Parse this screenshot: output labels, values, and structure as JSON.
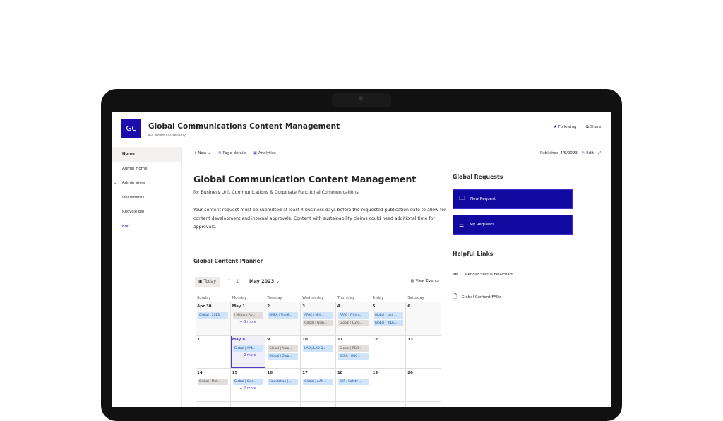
{
  "site": {
    "logo": "GC",
    "title": "Global Communications Content Management",
    "subtitle": "K-C Internal Use Only",
    "following": "Following",
    "share": "Share"
  },
  "nav": [
    "Home",
    "Admin Home",
    "Admin View",
    "Documents",
    "Recycle bin",
    "Edit"
  ],
  "commands": {
    "new": "New",
    "page_details": "Page details",
    "analytics": "Analytics",
    "published": "Published 4/5/2023",
    "edit": "Edit"
  },
  "main": {
    "title": "Global Communication Content Management",
    "subtitle": "for Business Unit Communications & Corporate Functional Communications",
    "body": "Your content request must be submitted at least 4 business days before the requested publication date to allow for content development and internal approvals.  Content with sustainability claims could need additional time for approvals."
  },
  "planner": {
    "title": "Global Content Planner",
    "today": "Today",
    "month": "May 2023",
    "view_events": "View Events",
    "days": [
      "Sunday",
      "Monday",
      "Tuesday",
      "Wednesday",
      "Thursday",
      "Friday",
      "Saturday"
    ],
    "weeks": [
      [
        {
          "d": "Apr 30",
          "ev": [
            [
              "Global | 2023...",
              "b"
            ]
          ]
        },
        {
          "d": "May 1",
          "ev": [
            [
              "| Military Ap...",
              "g"
            ]
          ],
          "more": "+ 3 more"
        },
        {
          "d": "2",
          "ev": [
            [
              "EMEA | The E...",
              "b"
            ]
          ]
        },
        {
          "d": "3",
          "ev": [
            [
              "APAC | Milit...",
              "b"
            ],
            [
              "Global | Glob...",
              "g"
            ]
          ]
        },
        {
          "d": "4",
          "ev": [
            [
              "APAC | Fifty y...",
              "b"
            ],
            [
              "Global | Q2 G...",
              "g"
            ]
          ]
        },
        {
          "d": "5",
          "ev": [
            [
              "Global | Lori ...",
              "b"
            ],
            [
              "Global | VIDE...",
              "b"
            ]
          ]
        },
        {
          "d": "6",
          "ev": []
        }
      ],
      [
        {
          "d": "7",
          "ev": []
        },
        {
          "d": "May 8",
          "ev": [
            [
              "Global | AAN...",
              "b"
            ]
          ],
          "more": "+ 2 more",
          "cur": true
        },
        {
          "d": "9",
          "ev": [
            [
              "Global | Auro...",
              "g"
            ],
            [
              "Global | Glob...",
              "b"
            ]
          ]
        },
        {
          "d": "10",
          "ev": [
            [
              "LAO | LAO Q...",
              "b"
            ]
          ]
        },
        {
          "d": "11",
          "ev": [
            [
              "Global | REM...",
              "g"
            ],
            [
              "KCNA | UsK ...",
              "b"
            ]
          ]
        },
        {
          "d": "12",
          "ev": []
        },
        {
          "d": "13",
          "ev": []
        }
      ],
      [
        {
          "d": "14",
          "ev": [
            [
              "Global | Mot...",
              "g"
            ]
          ]
        },
        {
          "d": "15",
          "ev": [
            [
              "Global | Cele...",
              "b"
            ]
          ],
          "more": "+ 2 more"
        },
        {
          "d": "16",
          "ev": [
            [
              "Foundation | ...",
              "b"
            ]
          ]
        },
        {
          "d": "17",
          "ev": [
            [
              "Global | AAN...",
              "b"
            ]
          ]
        },
        {
          "d": "18",
          "ev": [
            [
              "KCP | Safety ...",
              "b"
            ]
          ]
        },
        {
          "d": "19",
          "ev": []
        },
        {
          "d": "20",
          "ev": []
        }
      ]
    ]
  },
  "right": {
    "requests_title": "Global Requests",
    "new_request": "New Request",
    "my_requests": "My Requests",
    "links_title": "Helpful Links",
    "links": [
      "Calendar Status Flowchart",
      "Global Content FAQs"
    ]
  }
}
